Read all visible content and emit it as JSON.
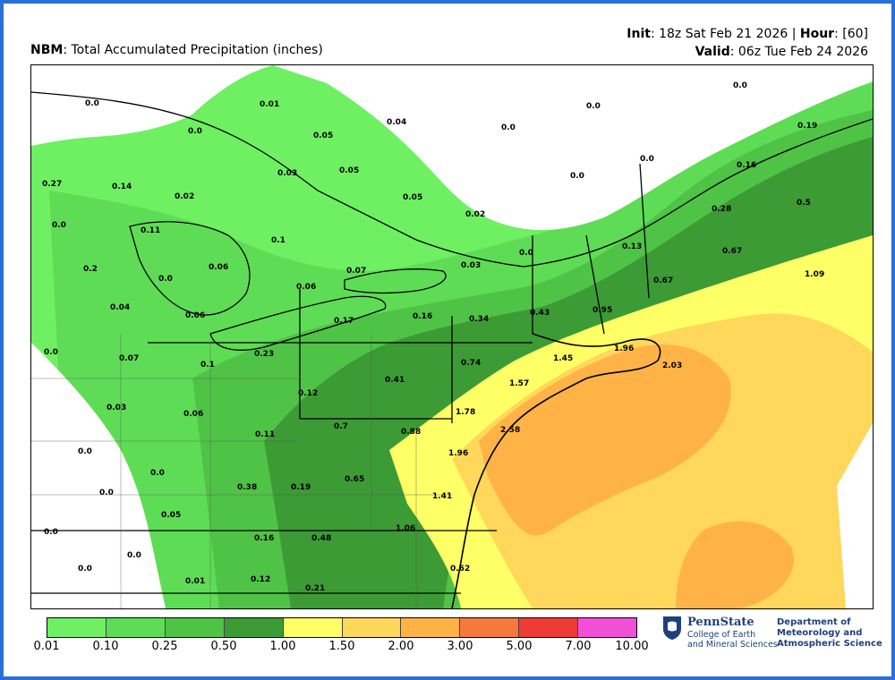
{
  "header": {
    "model_label": "NBM",
    "product_label": ": Total Accumulated Precipitation (inches)",
    "init_label": "Init",
    "init_value": ": 18z Sat Feb 21 2026 | ",
    "hour_label": "Hour",
    "hour_value": ": [60]",
    "valid_label": "Valid",
    "valid_value": ": 06z Tue Feb 24 2026"
  },
  "map_data": {
    "type": "precipitation_map",
    "units": "inches",
    "point_values": [
      {
        "id": "p1",
        "value": "0.0"
      },
      {
        "id": "p2",
        "value": "0.01"
      },
      {
        "id": "p3",
        "value": "0.04"
      },
      {
        "id": "p4",
        "value": "0.0"
      },
      {
        "id": "p5",
        "value": "0.0"
      },
      {
        "id": "p6",
        "value": "0.0"
      },
      {
        "id": "p7",
        "value": "0.05"
      },
      {
        "id": "p8",
        "value": "0.03"
      },
      {
        "id": "p9",
        "value": "0.05"
      },
      {
        "id": "p10",
        "value": "0.05"
      },
      {
        "id": "p11",
        "value": "0.02"
      },
      {
        "id": "p12",
        "value": "0.0"
      },
      {
        "id": "p13",
        "value": "0.0"
      },
      {
        "id": "p14",
        "value": "0.0"
      },
      {
        "id": "p15",
        "value": "0.19"
      },
      {
        "id": "p16",
        "value": "0.16"
      },
      {
        "id": "p17",
        "value": "0.5"
      },
      {
        "id": "p18",
        "value": "0.28"
      },
      {
        "id": "p19",
        "value": "0.27"
      },
      {
        "id": "p20",
        "value": "0.14"
      },
      {
        "id": "p21",
        "value": "0.02"
      },
      {
        "id": "p22",
        "value": "0.0"
      },
      {
        "id": "p23",
        "value": "0.11"
      },
      {
        "id": "p24",
        "value": "0.1"
      },
      {
        "id": "p25",
        "value": "0.0"
      },
      {
        "id": "p26",
        "value": "0.13"
      },
      {
        "id": "p27",
        "value": "0.67"
      },
      {
        "id": "p28",
        "value": "1.09"
      },
      {
        "id": "p29",
        "value": "0.2"
      },
      {
        "id": "p30",
        "value": "0.06"
      },
      {
        "id": "p31",
        "value": "0.07"
      },
      {
        "id": "p32",
        "value": "0.03"
      },
      {
        "id": "p33",
        "value": "0.0"
      },
      {
        "id": "p34",
        "value": "0.06"
      },
      {
        "id": "p35",
        "value": "0.67"
      },
      {
        "id": "p36",
        "value": "0.04"
      },
      {
        "id": "p37",
        "value": "0.06"
      },
      {
        "id": "p38",
        "value": "0.17"
      },
      {
        "id": "p39",
        "value": "0.16"
      },
      {
        "id": "p40",
        "value": "0.34"
      },
      {
        "id": "p41",
        "value": "0.43"
      },
      {
        "id": "p42",
        "value": "0.95"
      },
      {
        "id": "p43",
        "value": "0.0"
      },
      {
        "id": "p44",
        "value": "0.07"
      },
      {
        "id": "p45",
        "value": "0.23"
      },
      {
        "id": "p46",
        "value": "0.1"
      },
      {
        "id": "p47",
        "value": "1.96"
      },
      {
        "id": "p48",
        "value": "1.45"
      },
      {
        "id": "p49",
        "value": "0.74"
      },
      {
        "id": "p50",
        "value": "2.03"
      },
      {
        "id": "p51",
        "value": "0.41"
      },
      {
        "id": "p52",
        "value": "1.57"
      },
      {
        "id": "p53",
        "value": "0.12"
      },
      {
        "id": "p54",
        "value": "0.03"
      },
      {
        "id": "p55",
        "value": "0.06"
      },
      {
        "id": "p56",
        "value": "1.78"
      },
      {
        "id": "p57",
        "value": "0.7"
      },
      {
        "id": "p58",
        "value": "0.88"
      },
      {
        "id": "p59",
        "value": "2.58"
      },
      {
        "id": "p60",
        "value": "0.11"
      },
      {
        "id": "p61",
        "value": "0.0"
      },
      {
        "id": "p62",
        "value": "1.96"
      },
      {
        "id": "p63",
        "value": "0.0"
      },
      {
        "id": "p64",
        "value": "0.65"
      },
      {
        "id": "p65",
        "value": "0.38"
      },
      {
        "id": "p66",
        "value": "0.19"
      },
      {
        "id": "p67",
        "value": "0.0"
      },
      {
        "id": "p68",
        "value": "1.41"
      },
      {
        "id": "p69",
        "value": "0.05"
      },
      {
        "id": "p70",
        "value": "1.06"
      },
      {
        "id": "p71",
        "value": "0.0"
      },
      {
        "id": "p72",
        "value": "0.16"
      },
      {
        "id": "p73",
        "value": "0.48"
      },
      {
        "id": "p74",
        "value": "0.0"
      },
      {
        "id": "p75",
        "value": "0.62"
      },
      {
        "id": "p76",
        "value": "0.0"
      },
      {
        "id": "p77",
        "value": "0.01"
      },
      {
        "id": "p78",
        "value": "0.12"
      },
      {
        "id": "p79",
        "value": "0.21"
      }
    ]
  },
  "legend": {
    "colors": [
      "#6ef062",
      "#5fdc55",
      "#4fc346",
      "#3c9b35",
      "#ffff66",
      "#ffd75a",
      "#ffb347",
      "#f5793a",
      "#ee3b35",
      "#f050d8"
    ],
    "ticks": [
      "0.01",
      "0.10",
      "0.25",
      "0.50",
      "1.00",
      "1.50",
      "2.00",
      "3.00",
      "5.00",
      "7.00",
      "10.00"
    ]
  },
  "branding": {
    "ps_name": "PennState",
    "ps_sub1": "College of Earth",
    "ps_sub2": "and Mineral Sciences",
    "dept1": "Department of",
    "dept2": "Meteorology and",
    "dept3": "Atmospheric Science"
  }
}
